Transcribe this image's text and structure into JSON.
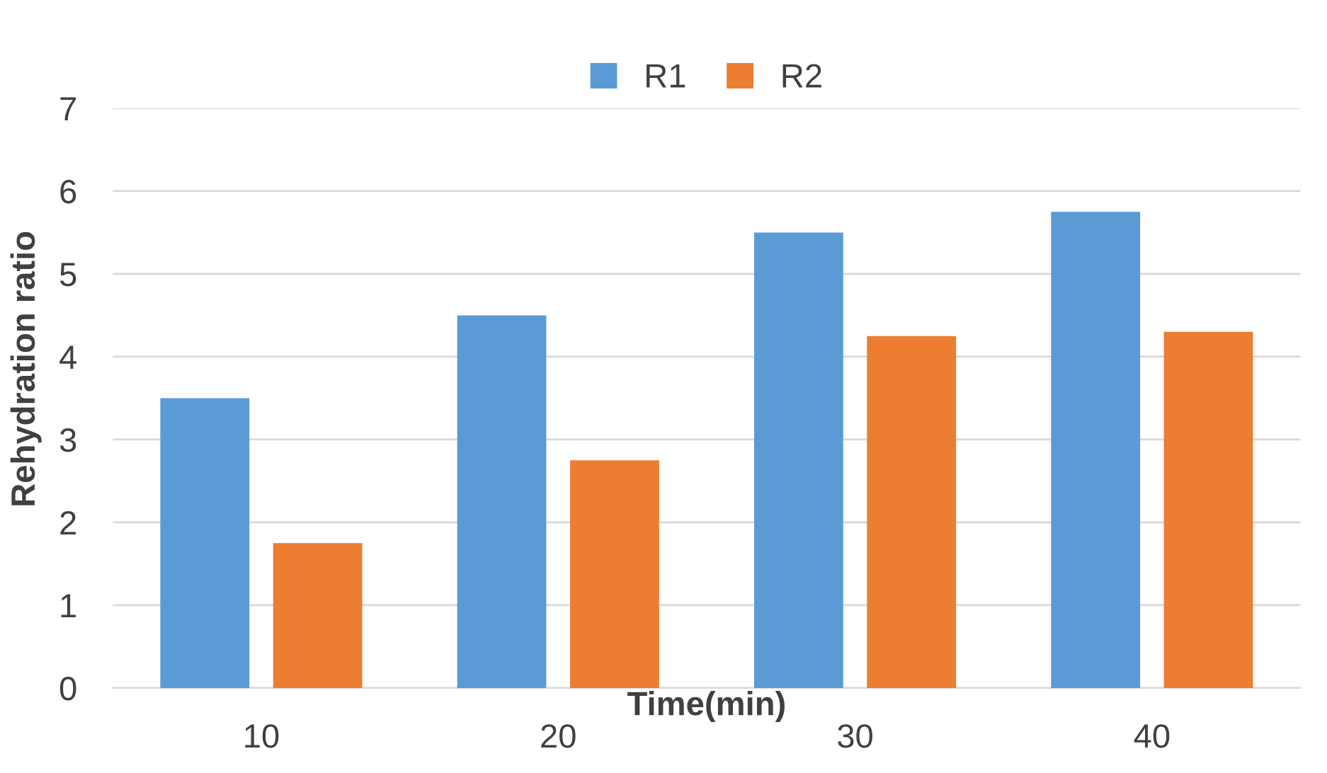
{
  "chart_data": {
    "type": "bar",
    "xlabel": "Time(min)",
    "ylabel": "Rehydration ratio",
    "categories": [
      "10",
      "20",
      "30",
      "40"
    ],
    "series": [
      {
        "name": "R1",
        "color": "#5b9bd5",
        "values": [
          3.5,
          4.5,
          5.5,
          5.75
        ]
      },
      {
        "name": "R2",
        "color": "#ed7d31",
        "values": [
          1.75,
          2.75,
          4.25,
          4.3
        ]
      }
    ],
    "ylim": [
      0,
      7
    ],
    "yticks": [
      0,
      1,
      2,
      3,
      4,
      5,
      6,
      7
    ],
    "grid": "y",
    "legend": "top"
  }
}
